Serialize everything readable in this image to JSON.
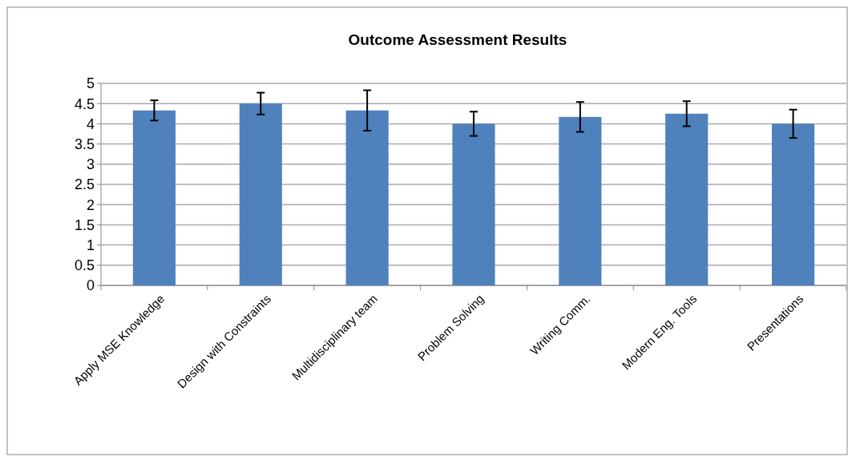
{
  "chart_data": {
    "type": "bar",
    "title": "Outcome Assessment Results",
    "categories": [
      "Apply MSE Knowledge",
      "Design with Constraints",
      "Multidisciplinary team",
      "Problem Solving",
      "Writing Comm.",
      "Modern Eng. Tools",
      "Presentations"
    ],
    "values": [
      4.33,
      4.5,
      4.33,
      4.0,
      4.17,
      4.25,
      4.0
    ],
    "errors": [
      0.25,
      0.27,
      0.5,
      0.3,
      0.37,
      0.31,
      0.35
    ],
    "color": "#4f81bd",
    "ylim": [
      0,
      5
    ],
    "yticks": [
      0,
      0.5,
      1,
      1.5,
      2,
      2.5,
      3,
      3.5,
      4,
      4.5,
      5
    ],
    "grid": "y"
  }
}
